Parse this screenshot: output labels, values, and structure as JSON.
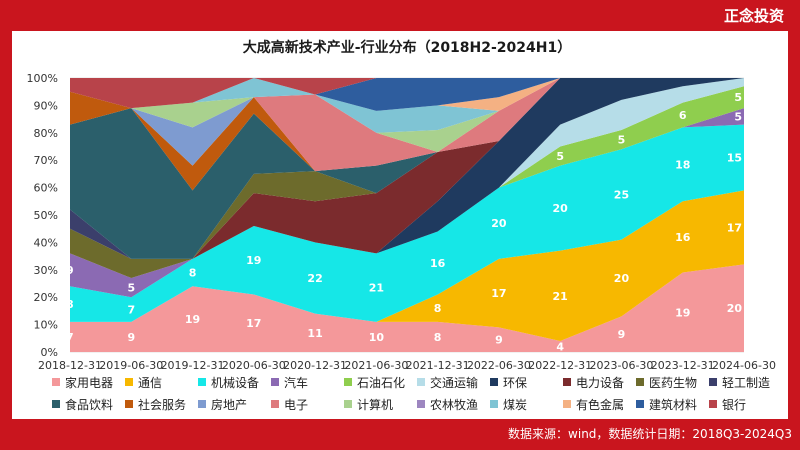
{
  "brand": "正念投资",
  "source": "数据来源：wind，数据统计日期：2018Q3-2024Q3",
  "colors": {
    "page_bg": "#c9151e",
    "card_bg": "#ffffff"
  },
  "chart_data": {
    "type": "area",
    "stacked": "percent",
    "title": "大成高新技术产业-行业分布（2018H2-2024H1）",
    "xlabel": "",
    "ylabel": "",
    "ylim": [
      0,
      100
    ],
    "y_ticks": [
      "0%",
      "10%",
      "20%",
      "30%",
      "40%",
      "50%",
      "60%",
      "70%",
      "80%",
      "90%",
      "100%"
    ],
    "grid": true,
    "legend_position": "bottom",
    "categories": [
      "2018-12-31",
      "2019-06-30",
      "2019-12-31",
      "2020-06-30",
      "2020-12-31",
      "2021-06-30",
      "2021-12-31",
      "2022-06-30",
      "2022-12-31",
      "2023-06-30",
      "2023-12-31",
      "2024-06-30"
    ],
    "series": [
      {
        "name": "家用电器",
        "color": "#f4989a",
        "values": [
          11,
          11,
          24,
          21,
          14,
          11,
          11,
          9,
          4,
          13,
          29,
          32
        ],
        "labels": [
          "7",
          "9",
          "19",
          "17",
          "11",
          "10",
          "8",
          "9",
          "4",
          "9",
          "19",
          "20"
        ]
      },
      {
        "name": "通信",
        "color": "#f7b800",
        "values": [
          0,
          0,
          0,
          0,
          0,
          0,
          10,
          25,
          33,
          28,
          26,
          27
        ],
        "labels": [
          "",
          "",
          "",
          "",
          "",
          "",
          "8",
          "17",
          "21",
          "20",
          "16",
          "17"
        ]
      },
      {
        "name": "机械设备",
        "color": "#16e7e7",
        "values": [
          13,
          9,
          10,
          25,
          26,
          25,
          23,
          26,
          31,
          33,
          27,
          24
        ],
        "labels": [
          "8",
          "7",
          "8",
          "19",
          "22",
          "21",
          "16",
          "20",
          "20",
          "25",
          "18",
          "15"
        ]
      },
      {
        "name": "汽车",
        "color": "#8b6ab3",
        "values": [
          12,
          7,
          0,
          0,
          0,
          0,
          0,
          0,
          0,
          0,
          0,
          6
        ],
        "labels": [
          "9",
          "5",
          "",
          "",
          "",
          "",
          "",
          "",
          "",
          "",
          "",
          "5"
        ]
      },
      {
        "name": "石油石化",
        "color": "#8fce4e",
        "values": [
          0,
          0,
          0,
          0,
          0,
          0,
          0,
          0,
          7,
          7,
          9,
          8
        ],
        "labels": [
          "",
          "",
          "",
          "",
          "",
          "",
          "",
          "",
          "5",
          "5",
          "6",
          "5"
        ]
      },
      {
        "name": "交通运输",
        "color": "#b6dde8",
        "values": [
          0,
          0,
          0,
          0,
          0,
          0,
          0,
          0,
          8,
          11,
          6,
          3
        ],
        "labels": [
          "",
          "",
          "",
          "",
          "",
          "",
          "",
          "",
          "",
          "",
          "",
          ""
        ]
      },
      {
        "name": "环保",
        "color": "#1f3a5f",
        "values": [
          0,
          0,
          0,
          0,
          0,
          0,
          11,
          17,
          17,
          8,
          3,
          0
        ],
        "labels": [
          "",
          "",
          "",
          "",
          "",
          "",
          "",
          "",
          "",
          "",
          "",
          ""
        ]
      },
      {
        "name": "电力设备",
        "color": "#7b2b2d",
        "values": [
          0,
          0,
          0,
          12,
          15,
          22,
          18,
          0,
          0,
          0,
          0,
          0
        ],
        "labels": [
          "",
          "",
          "",
          "",
          "",
          "",
          "",
          "",
          "",
          "",
          "",
          ""
        ]
      },
      {
        "name": "医药生物",
        "color": "#6d6b2c",
        "values": [
          9,
          7,
          0,
          7,
          11,
          0,
          0,
          0,
          0,
          0,
          0,
          0
        ],
        "labels": [
          "",
          "",
          "",
          "",
          "",
          "",
          "",
          "",
          "",
          "",
          "",
          ""
        ]
      },
      {
        "name": "轻工制造",
        "color": "#3b3f6b",
        "values": [
          7,
          0,
          0,
          0,
          0,
          0,
          0,
          0,
          0,
          0,
          0,
          0
        ],
        "labels": [
          "",
          "",
          "",
          "",
          "",
          "",
          "",
          "",
          "",
          "",
          "",
          ""
        ]
      },
      {
        "name": "食品饮料",
        "color": "#2b5f6b",
        "values": [
          31,
          55,
          25,
          22,
          0,
          10,
          0,
          0,
          0,
          0,
          0,
          0
        ],
        "labels": [
          "",
          "",
          "",
          "",
          "",
          "",
          "",
          "",
          "",
          "",
          "",
          ""
        ]
      },
      {
        "name": "社会服务",
        "color": "#c05a0d",
        "values": [
          12,
          0,
          9,
          6,
          0,
          0,
          0,
          0,
          0,
          0,
          0,
          0
        ],
        "labels": [
          "",
          "",
          "",
          "",
          "",
          "",
          "",
          "",
          "",
          "",
          "",
          ""
        ]
      },
      {
        "name": "房地产",
        "color": "#7e9bd0",
        "values": [
          0,
          0,
          14,
          0,
          0,
          0,
          0,
          0,
          0,
          0,
          0,
          0
        ],
        "labels": [
          "",
          "",
          "",
          "",
          "",
          "",
          "",
          "",
          "",
          "",
          "",
          ""
        ]
      },
      {
        "name": "电子",
        "color": "#de7a7e",
        "values": [
          0,
          0,
          0,
          0,
          28,
          12,
          0,
          11,
          0,
          0,
          0,
          0
        ],
        "labels": [
          "",
          "",
          "",
          "",
          "",
          "",
          "",
          "",
          "",
          "",
          "",
          ""
        ]
      },
      {
        "name": "计算机",
        "color": "#a9d18e",
        "values": [
          0,
          0,
          9,
          0,
          0,
          0,
          8,
          0,
          0,
          0,
          0,
          0
        ],
        "labels": [
          "",
          "",
          "",
          "",
          "",
          "",
          "",
          "",
          "",
          "",
          "",
          ""
        ]
      },
      {
        "name": "农林牧渔",
        "color": "#9d86c0",
        "values": [
          0,
          0,
          0,
          0,
          0,
          0,
          0,
          0,
          0,
          0,
          0,
          0
        ],
        "labels": [
          "",
          "",
          "",
          "",
          "",
          "",
          "",
          "",
          "",
          "",
          "",
          ""
        ]
      },
      {
        "name": "煤炭",
        "color": "#7fc4d4",
        "values": [
          0,
          0,
          0,
          7,
          0,
          8,
          9,
          0,
          0,
          0,
          0,
          0
        ],
        "labels": [
          "",
          "",
          "",
          "",
          "",
          "",
          "",
          "",
          "",
          "",
          "",
          ""
        ]
      },
      {
        "name": "有色金属",
        "color": "#f4b183",
        "values": [
          0,
          0,
          0,
          0,
          0,
          0,
          0,
          5,
          0,
          0,
          0,
          0
        ],
        "labels": [
          "",
          "",
          "",
          "",
          "",
          "",
          "",
          "",
          "",
          "",
          "",
          ""
        ]
      },
      {
        "name": "建筑材料",
        "color": "#2e5d9e",
        "values": [
          0,
          0,
          0,
          0,
          0,
          12,
          10,
          7,
          0,
          0,
          0,
          0
        ],
        "labels": [
          "",
          "",
          "",
          "",
          "",
          "",
          "",
          "",
          "",
          "",
          "",
          ""
        ]
      },
      {
        "name": "银行",
        "color": "#b8434a",
        "values": [
          5,
          11,
          9,
          0,
          6,
          0,
          0,
          0,
          0,
          0,
          0,
          0
        ],
        "labels": [
          "",
          "",
          "",
          "",
          "",
          "",
          "",
          "",
          "",
          "",
          "",
          ""
        ]
      }
    ]
  }
}
